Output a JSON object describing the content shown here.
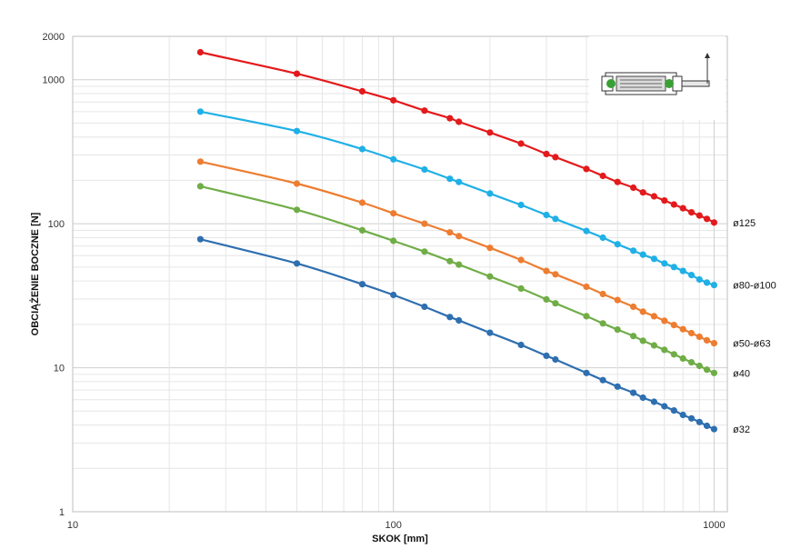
{
  "chart_data": {
    "type": "line",
    "title": "",
    "xlabel": "SKOK [mm]",
    "ylabel": "OBCIĄŻENIE BOCZNE [N]",
    "x_scale": "log",
    "y_scale": "log",
    "xlim": [
      10,
      1100
    ],
    "ylim": [
      1,
      2000
    ],
    "x_ticks": [
      10,
      100,
      1000
    ],
    "y_ticks": [
      1,
      10,
      100,
      1000,
      2000
    ],
    "grid": true,
    "legend": "labels at right end of each line",
    "x": [
      25,
      50,
      80,
      100,
      125,
      150,
      160,
      200,
      250,
      300,
      320,
      400,
      450,
      500,
      560,
      600,
      650,
      700,
      750,
      800,
      850,
      900,
      950,
      1000
    ],
    "series": [
      {
        "name": "ø125",
        "color": "#e31a1c",
        "values": [
          1550,
          1100,
          830,
          720,
          610,
          540,
          510,
          430,
          360,
          305,
          290,
          240,
          215,
          195,
          178,
          165,
          155,
          145,
          136,
          128,
          120,
          114,
          108,
          102
        ]
      },
      {
        "name": "ø80-ø100",
        "color": "#1fb0e6",
        "values": [
          600,
          440,
          330,
          280,
          238,
          205,
          195,
          162,
          135,
          115,
          108,
          89,
          80,
          72,
          65,
          61,
          57,
          53,
          50,
          47,
          44,
          41,
          39,
          37.5
        ]
      },
      {
        "name": "ø50-ø63",
        "color": "#ed7d31",
        "values": [
          270,
          190,
          140,
          118,
          100,
          87,
          82,
          68,
          56,
          47,
          44.5,
          36.5,
          32.5,
          29.5,
          26.5,
          24.5,
          22.8,
          21.2,
          19.8,
          18.5,
          17.4,
          16.4,
          15.5,
          14.8
        ]
      },
      {
        "name": "ø40",
        "color": "#70ad47",
        "values": [
          182,
          125,
          90,
          76,
          64,
          55,
          52,
          43,
          35.5,
          29.8,
          28,
          22.8,
          20.3,
          18.4,
          16.6,
          15.4,
          14.3,
          13.3,
          12.4,
          11.6,
          10.9,
          10.3,
          9.7,
          9.2
        ]
      },
      {
        "name": "ø32",
        "color": "#2e6fb0",
        "values": [
          78,
          53,
          38,
          32,
          26.5,
          22.5,
          21.3,
          17.5,
          14.4,
          12.1,
          11.4,
          9.2,
          8.2,
          7.4,
          6.7,
          6.2,
          5.8,
          5.4,
          5.05,
          4.7,
          4.45,
          4.2,
          3.95,
          3.75
        ]
      }
    ]
  },
  "icons": {
    "inset": "cylinder-diagram-icon"
  }
}
